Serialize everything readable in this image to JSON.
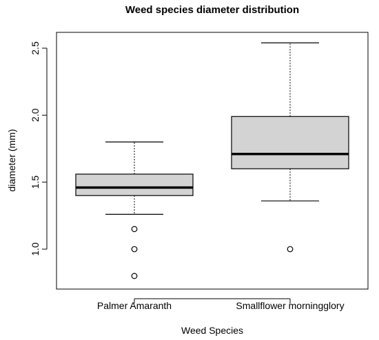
{
  "chart_data": {
    "type": "boxplot",
    "title": "Weed species diameter distribution",
    "xlabel": "Weed Species",
    "ylabel": "diameter (mm)",
    "ylim": [
      0.75,
      2.6
    ],
    "yticks": [
      "1.0",
      "1.5",
      "2.0",
      "2.5"
    ],
    "grid": false,
    "box_fill": "#d3d3d3",
    "series": [
      {
        "category": "Palmer Amaranth",
        "whisker_low": 1.26,
        "q1": 1.4,
        "median": 1.46,
        "q3": 1.56,
        "whisker_high": 1.8,
        "outliers": [
          1.15,
          1.0,
          0.8
        ]
      },
      {
        "category": "Smallflower morningglory",
        "whisker_low": 1.36,
        "q1": 1.6,
        "median": 1.71,
        "q3": 1.99,
        "whisker_high": 2.54,
        "outliers": [
          1.0
        ]
      }
    ]
  }
}
